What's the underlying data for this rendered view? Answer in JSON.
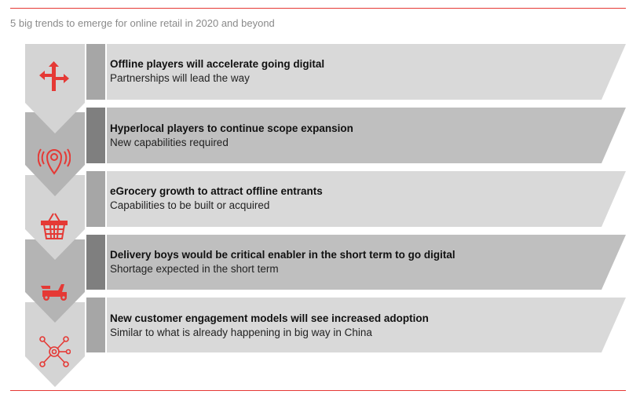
{
  "subtitle": "5 big trends to emerge for online retail in 2020 and beyond",
  "colors": {
    "accent": "#e53935",
    "band_light": "#d9d9d9",
    "band_dark": "#bfbfbf",
    "arrow_light": "#d4d4d4",
    "arrow_dark": "#b4b4b4",
    "separator": "#7f7f7f"
  },
  "trends": [
    {
      "title": "Offline players will accelerate going digital",
      "subtitle": "Partnerships will lead the way",
      "icon": "signpost-icon",
      "shade": "light"
    },
    {
      "title": "Hyperlocal players to continue scope expansion",
      "subtitle": "New capabilities required",
      "icon": "location-pin-icon",
      "shade": "dark"
    },
    {
      "title": "eGrocery growth to attract offline entrants",
      "subtitle": "Capabilities to be built or acquired",
      "icon": "shopping-basket-icon",
      "shade": "light"
    },
    {
      "title": "Delivery boys would be critical enabler in the short term to go digital",
      "subtitle": "Shortage expected in the short term",
      "icon": "scooter-icon",
      "shade": "dark"
    },
    {
      "title": "New customer engagement models will see increased adoption",
      "subtitle": "Similar to what is already happening in big way in China",
      "icon": "network-hub-icon",
      "shade": "light"
    }
  ]
}
